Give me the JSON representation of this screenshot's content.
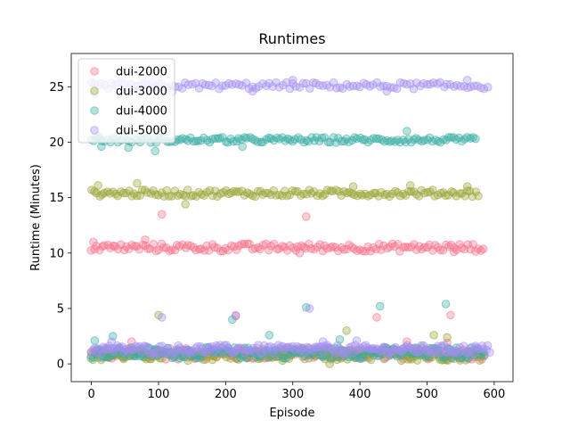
{
  "chart_data": {
    "type": "scatter",
    "title": "Runtimes",
    "xlabel": "Episode",
    "ylabel": "Runtime (Minutes)",
    "xlim": [
      -30,
      628
    ],
    "ylim": [
      -1.6,
      28.0
    ],
    "xticks": [
      0,
      100,
      200,
      300,
      400,
      500,
      600
    ],
    "yticks": [
      0,
      5,
      10,
      15,
      20,
      25
    ],
    "legend_position": "top-left",
    "marker_alpha": 0.35,
    "series": [
      {
        "name": "dui-2000",
        "color": "#f77189",
        "upper_band": {
          "x_start": 0,
          "x_end": 585,
          "step": 4,
          "base": 10.5,
          "spread": 0.35,
          "outliers": [
            [
              3,
              11.0
            ],
            [
              80,
              11.2
            ],
            [
              105,
              13.5
            ],
            [
              320,
              13.3
            ],
            [
              310,
              10.0
            ],
            [
              540,
              10.1
            ]
          ]
        },
        "lower_band": {
          "x_start": 0,
          "x_end": 585,
          "step": 3,
          "base": 0.9,
          "spread": 0.5,
          "outliers": [
            [
              60,
              2.0
            ],
            [
              215,
              4.3
            ],
            [
              425,
              4.2
            ],
            [
              535,
              4.4
            ],
            [
              470,
              2.0
            ],
            [
              530,
              1.9
            ]
          ]
        }
      },
      {
        "name": "dui-3000",
        "color": "#97a431",
        "upper_band": {
          "x_start": 0,
          "x_end": 578,
          "step": 4,
          "base": 15.4,
          "spread": 0.3,
          "outliers": [
            [
              10,
              16.1
            ],
            [
              68,
              16.3
            ],
            [
              140,
              14.4
            ],
            [
              390,
              16.0
            ],
            [
              475,
              16.1
            ],
            [
              560,
              16.0
            ]
          ]
        },
        "lower_band": {
          "x_start": 0,
          "x_end": 585,
          "step": 3,
          "base": 0.8,
          "spread": 0.5,
          "outliers": [
            [
              100,
              4.4
            ],
            [
              380,
              3.0
            ],
            [
              510,
              2.6
            ],
            [
              530,
              2.4
            ],
            [
              355,
              0.0
            ]
          ]
        }
      },
      {
        "name": "dui-4000",
        "color": "#36ada4",
        "upper_band": {
          "x_start": 0,
          "x_end": 575,
          "step": 4,
          "base": 20.2,
          "spread": 0.25,
          "outliers": [
            [
              15,
              19.6
            ],
            [
              55,
              19.5
            ],
            [
              95,
              19.2
            ],
            [
              225,
              19.6
            ],
            [
              470,
              21.0
            ],
            [
              10,
              20.5
            ]
          ]
        },
        "lower_band": {
          "x_start": 0,
          "x_end": 585,
          "step": 3,
          "base": 1.0,
          "spread": 0.5,
          "outliers": [
            [
              5,
              2.1
            ],
            [
              32,
              2.5
            ],
            [
              210,
              4.0
            ],
            [
              320,
              5.1
            ],
            [
              430,
              5.2
            ],
            [
              528,
              5.4
            ],
            [
              265,
              2.6
            ],
            [
              370,
              2.2
            ]
          ]
        }
      },
      {
        "name": "dui-5000",
        "color": "#a48cf4",
        "upper_band": {
          "x_start": 0,
          "x_end": 590,
          "step": 5,
          "base": 25.1,
          "spread": 0.3,
          "outliers": [
            [
              5,
              24.4
            ],
            [
              120,
              24.5
            ],
            [
              240,
              24.6
            ],
            [
              440,
              24.6
            ],
            [
              300,
              25.6
            ],
            [
              560,
              25.6
            ]
          ]
        },
        "lower_band": {
          "x_start": 0,
          "x_end": 595,
          "step": 3,
          "base": 1.3,
          "spread": 0.4,
          "outliers": [
            [
              105,
              4.2
            ],
            [
              215,
              4.4
            ],
            [
              325,
              5.0
            ],
            [
              395,
              2.1
            ],
            [
              345,
              2.0
            ],
            [
              30,
              2.0
            ]
          ]
        }
      }
    ]
  }
}
